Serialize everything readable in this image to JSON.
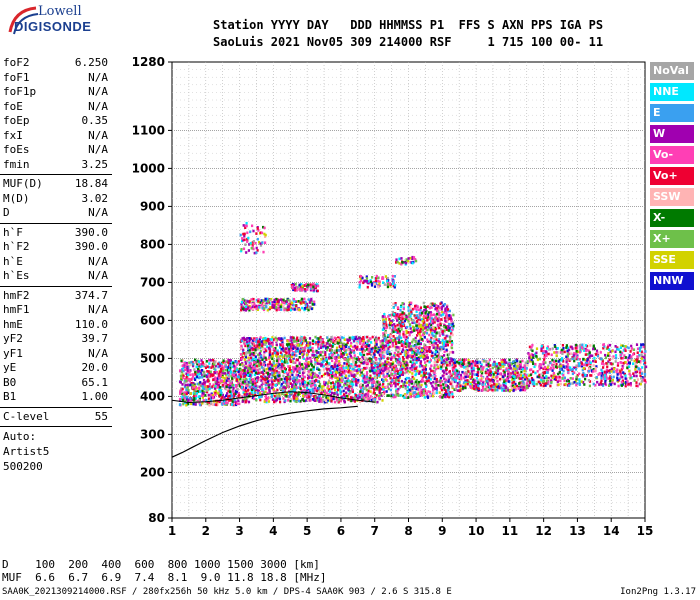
{
  "logo": {
    "line1": "Lowell",
    "line2": "DIGISONDE"
  },
  "header": {
    "line1": "Station YYYY DAY   DDD HHMMSS P1  FFS S AXN PPS IGA PS",
    "line2": "SaoLuis 2021 Nov05 309 214000 RSF     1 715 100 00- 11"
  },
  "params": {
    "group1": [
      {
        "k": "foF2",
        "v": "6.250"
      },
      {
        "k": "foF1",
        "v": "N/A"
      },
      {
        "k": "foF1p",
        "v": "N/A"
      },
      {
        "k": "foE",
        "v": "N/A"
      },
      {
        "k": "foEp",
        "v": "0.35"
      },
      {
        "k": "fxI",
        "v": "N/A"
      },
      {
        "k": "foEs",
        "v": "N/A"
      },
      {
        "k": "fmin",
        "v": "3.25"
      }
    ],
    "group2": [
      {
        "k": "MUF(D)",
        "v": "18.84"
      },
      {
        "k": "M(D)",
        "v": "3.02"
      },
      {
        "k": "D",
        "v": "N/A"
      }
    ],
    "group3": [
      {
        "k": "h`F",
        "v": "390.0"
      },
      {
        "k": "h`F2",
        "v": "390.0"
      },
      {
        "k": "h`E",
        "v": "N/A"
      },
      {
        "k": "h`Es",
        "v": "N/A"
      }
    ],
    "group4": [
      {
        "k": "hmF2",
        "v": "374.7"
      },
      {
        "k": "hmF1",
        "v": "N/A"
      },
      {
        "k": "hmE",
        "v": "110.0"
      },
      {
        "k": "yF2",
        "v": "39.7"
      },
      {
        "k": "yF1",
        "v": "N/A"
      },
      {
        "k": "yE",
        "v": "20.0"
      },
      {
        "k": "B0",
        "v": "65.1"
      },
      {
        "k": "B1",
        "v": "1.00"
      }
    ],
    "group5": [
      {
        "k": "C-level",
        "v": "55"
      }
    ],
    "auto": [
      "Auto:",
      "Artist5",
      "500200"
    ]
  },
  "legend": [
    {
      "label": "NoVal",
      "color": "#a6a6a6"
    },
    {
      "label": "NNE",
      "color": "#00e8ff"
    },
    {
      "label": "E",
      "color": "#3aa0f0"
    },
    {
      "label": "W",
      "color": "#a000b0"
    },
    {
      "label": "Vo-",
      "color": "#ff3fb5"
    },
    {
      "label": "Vo+",
      "color": "#ee0032"
    },
    {
      "label": "SSW",
      "color": "#ffb4b4"
    },
    {
      "label": "X-",
      "color": "#007a00"
    },
    {
      "label": "X+",
      "color": "#6ec04a"
    },
    {
      "label": "SSE",
      "color": "#d2d200"
    },
    {
      "label": "NNW",
      "color": "#1010d0"
    }
  ],
  "muf_table": {
    "line1": "D    100  200  400  600  800 1000 1500 3000 [km]",
    "line2": "MUF  6.6  6.7  6.9  7.4  8.1  9.0 11.8 18.8 [MHz]"
  },
  "footer": {
    "left": "SAA0K_2021309214000.RSF / 280fx256h 50 kHz 5.0 km / DPS-4 SAA0K 903 / 2.6 S 315.8 E",
    "right": "Ion2Png 1.3.17"
  },
  "chart_data": {
    "type": "scatter",
    "x": {
      "min": 1,
      "max": 15,
      "ticks": [
        1,
        2,
        3,
        4,
        5,
        6,
        7,
        8,
        9,
        10,
        11,
        12,
        13,
        14,
        15
      ]
    },
    "y": {
      "min": 80,
      "max": 1280,
      "ticks": [
        80,
        200,
        300,
        400,
        500,
        600,
        700,
        800,
        900,
        1000,
        1100,
        1280
      ]
    },
    "grid": true,
    "profile": [
      [
        1.0,
        240
      ],
      [
        1.3,
        252
      ],
      [
        1.6,
        266
      ],
      [
        2.0,
        284
      ],
      [
        2.5,
        305
      ],
      [
        3.0,
        322
      ],
      [
        3.5,
        336
      ],
      [
        4.0,
        348
      ],
      [
        4.5,
        356
      ],
      [
        5.0,
        362
      ],
      [
        5.5,
        367
      ],
      [
        6.0,
        370
      ],
      [
        6.5,
        374
      ]
    ],
    "profile2": [
      [
        1.0,
        390
      ],
      [
        1.5,
        384
      ],
      [
        2.0,
        386
      ],
      [
        2.5,
        390
      ],
      [
        3.0,
        396
      ],
      [
        3.5,
        402
      ],
      [
        4.0,
        408
      ],
      [
        4.5,
        412
      ],
      [
        5.0,
        410
      ],
      [
        5.5,
        404
      ],
      [
        6.0,
        396
      ],
      [
        6.5,
        390
      ],
      [
        7.0,
        385
      ]
    ],
    "bands": [
      {
        "x0": 1.2,
        "x1": 3.0,
        "y0": 380,
        "y1": 500,
        "n": 700
      },
      {
        "x0": 3.0,
        "x1": 7.2,
        "y0": 388,
        "y1": 560,
        "n": 2200
      },
      {
        "x0": 7.2,
        "x1": 9.3,
        "y0": 400,
        "y1": 620,
        "n": 1200
      },
      {
        "x0": 9.3,
        "x1": 11.5,
        "y0": 418,
        "y1": 500,
        "n": 600
      },
      {
        "x0": 11.5,
        "x1": 15.0,
        "y0": 430,
        "y1": 540,
        "n": 700
      },
      {
        "x0": 3.0,
        "x1": 5.2,
        "y0": 630,
        "y1": 660,
        "n": 260
      },
      {
        "x0": 3.0,
        "x1": 3.8,
        "y0": 780,
        "y1": 860,
        "n": 60
      },
      {
        "x0": 4.5,
        "x1": 5.3,
        "y0": 680,
        "y1": 700,
        "n": 80
      },
      {
        "x0": 6.5,
        "x1": 7.6,
        "y0": 690,
        "y1": 720,
        "n": 80
      },
      {
        "x0": 7.5,
        "x1": 9.2,
        "y0": 600,
        "y1": 650,
        "n": 140
      },
      {
        "x0": 7.6,
        "x1": 8.2,
        "y0": 750,
        "y1": 770,
        "n": 30
      }
    ]
  }
}
